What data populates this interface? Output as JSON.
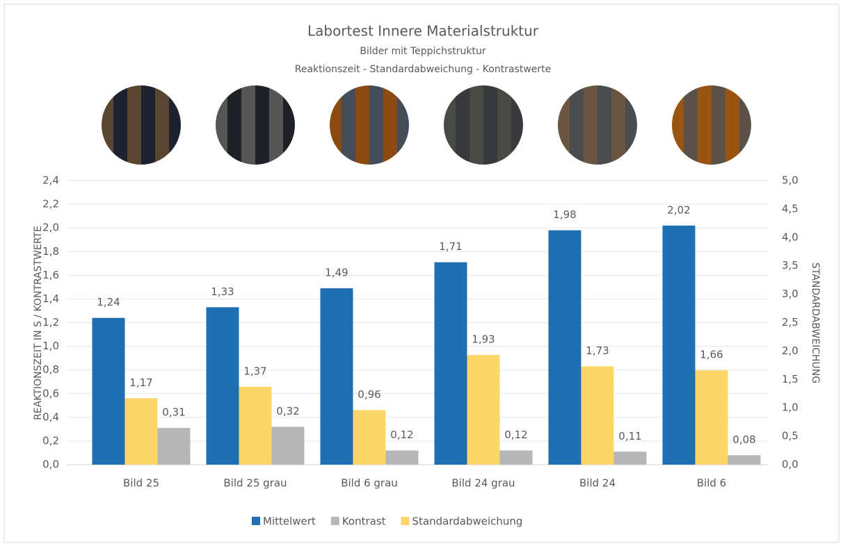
{
  "chart_data": {
    "type": "bar",
    "title": "Labortest Innere Materialstruktur",
    "subtitle": "Bilder mit Teppichstruktur",
    "subtitle2": "Reaktionszeit - Standardabweichung - Kontrastwerte",
    "y_label": "REAKTIONSZEIT IN S / KONTRASTWERTE",
    "y2_label": "STANDARDABWEICHUNG",
    "categories": [
      "Bild 25",
      "Bild 25 grau",
      "Bild 6 grau",
      "Bild 24 grau",
      "Bild 24",
      "Bild 6"
    ],
    "series": [
      {
        "name": "Mittelwert",
        "color": "#1f6fb3",
        "values": [
          1.24,
          1.33,
          1.49,
          1.71,
          1.98,
          2.02
        ],
        "value_labels": [
          "1,24",
          "1,33",
          "1,49",
          "1,71",
          "1,98",
          "2,02"
        ]
      },
      {
        "name": "Standardabweichung",
        "color": "#fdd66a",
        "axis": "y2",
        "values": [
          1.17,
          1.37,
          0.96,
          1.93,
          1.73,
          1.66
        ],
        "value_labels": [
          "1,17",
          "1,37",
          "0,96",
          "1,93",
          "1,73",
          "1,66"
        ]
      },
      {
        "name": "Kontrast",
        "color": "#b7b7b7",
        "values": [
          0.31,
          0.32,
          0.12,
          0.12,
          0.11,
          0.08
        ],
        "value_labels": [
          "0,31",
          "0,32",
          "0,12",
          "0,12",
          "0,11",
          "0,08"
        ]
      }
    ],
    "legend_order": [
      0,
      2,
      1
    ],
    "ylim": [
      0,
      2.4
    ],
    "yticks": [
      {
        "value": 0,
        "label": "0,0"
      },
      {
        "value": 0.2,
        "label": "0,2"
      },
      {
        "value": 0.4,
        "label": "0,4"
      },
      {
        "value": 0.6,
        "label": "0,6"
      },
      {
        "value": 0.8,
        "label": "0,8"
      },
      {
        "value": 1.0,
        "label": "1,0"
      },
      {
        "value": 1.2,
        "label": "1,2"
      },
      {
        "value": 1.4,
        "label": "1,4"
      },
      {
        "value": 1.6,
        "label": "1,6"
      },
      {
        "value": 1.8,
        "label": "1,8"
      },
      {
        "value": 2.0,
        "label": "2,0"
      },
      {
        "value": 2.2,
        "label": "2,2"
      },
      {
        "value": 2.4,
        "label": "2,4"
      }
    ],
    "y2lim": [
      0,
      5
    ],
    "y2ticks": [
      {
        "value": 0,
        "label": "0,0"
      },
      {
        "value": 0.5,
        "label": "0,5"
      },
      {
        "value": 1.0,
        "label": "1,0"
      },
      {
        "value": 1.5,
        "label": "1,5"
      },
      {
        "value": 2.0,
        "label": "2,0"
      },
      {
        "value": 2.5,
        "label": "2,5"
      },
      {
        "value": 3.0,
        "label": "3,0"
      },
      {
        "value": 3.5,
        "label": "3,5"
      },
      {
        "value": 4.0,
        "label": "4,0"
      },
      {
        "value": 4.5,
        "label": "4,5"
      },
      {
        "value": 5.0,
        "label": "5,0"
      }
    ],
    "grid": true
  }
}
